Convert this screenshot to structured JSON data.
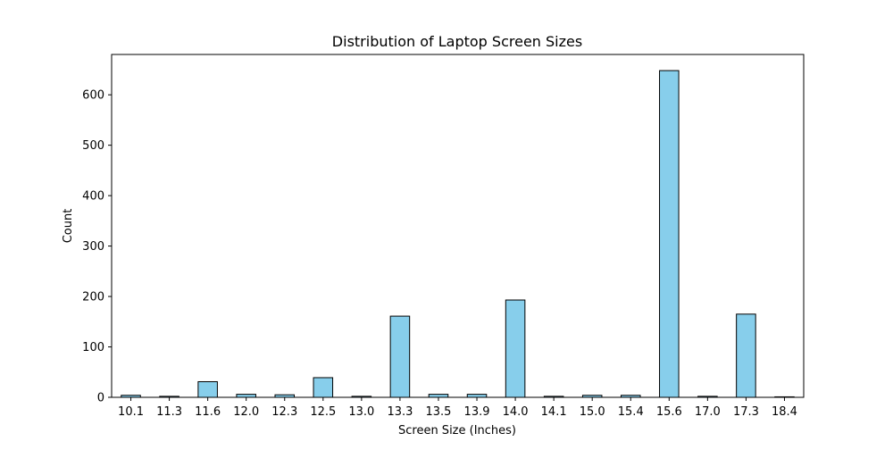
{
  "chart_data": {
    "type": "bar",
    "title": "Distribution of Laptop Screen Sizes",
    "xlabel": "Screen Size (Inches)",
    "ylabel": "Count",
    "categories": [
      "10.1",
      "11.3",
      "11.6",
      "12.0",
      "12.3",
      "12.5",
      "13.0",
      "13.3",
      "13.5",
      "13.9",
      "14.0",
      "14.1",
      "15.0",
      "15.4",
      "15.6",
      "17.0",
      "17.3",
      "18.4"
    ],
    "values": [
      4,
      2,
      31,
      6,
      5,
      39,
      2,
      161,
      6,
      6,
      193,
      2,
      4,
      4,
      648,
      2,
      165,
      1
    ],
    "yticks": [
      0,
      100,
      200,
      300,
      400,
      500,
      600
    ],
    "ylim": [
      0,
      680
    ],
    "grid": false,
    "bar_color": "#87ceeb",
    "edge_color": "#000000"
  }
}
